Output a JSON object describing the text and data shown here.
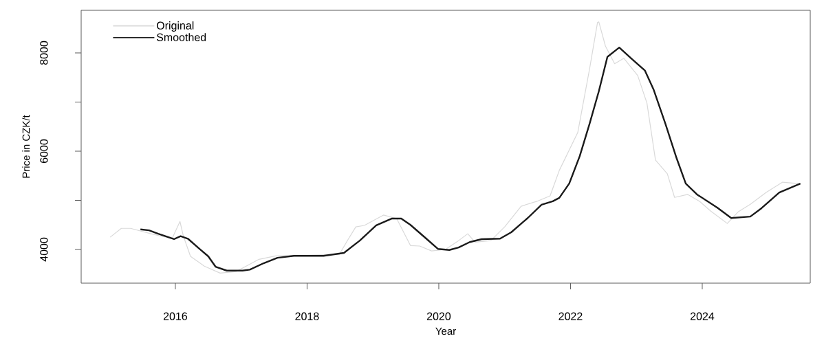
{
  "chart_data": {
    "type": "line",
    "xlabel": "Year",
    "ylabel": "Price in CZK/t",
    "xlim": [
      2014.57,
      2025.64
    ],
    "ylim": [
      3315,
      8867
    ],
    "xticks": [
      2016,
      2018,
      2020,
      2022,
      2024
    ],
    "yticks": [
      4000,
      {
        "value": 5000,
        "label": null
      },
      6000,
      {
        "value": 7000,
        "label": null
      },
      8000
    ],
    "legend": "top left",
    "series": [
      {
        "name": "Original",
        "color": "#d9d9d9",
        "x": [
          2015.01,
          2015.18,
          2015.32,
          2015.63,
          2015.95,
          2016.07,
          2016.12,
          2016.23,
          2016.44,
          2016.68,
          2016.92,
          2017.27,
          2017.52,
          2018.49,
          2018.63,
          2018.74,
          2018.87,
          2019.16,
          2019.36,
          2019.57,
          2019.71,
          2019.89,
          2020.1,
          2020.3,
          2020.44,
          2020.55,
          2020.79,
          2021.0,
          2021.25,
          2021.49,
          2021.69,
          2021.83,
          2022.11,
          2022.29,
          2022.41,
          2022.43,
          2022.53,
          2022.67,
          2022.81,
          2023.02,
          2023.16,
          2023.29,
          2023.47,
          2023.58,
          2023.78,
          2023.96,
          2024.13,
          2024.38,
          2024.55,
          2024.73,
          2024.97,
          2025.22,
          2025.46
        ],
        "values": [
          4250,
          4430,
          4430,
          4320,
          4220,
          4570,
          4280,
          3860,
          3660,
          3520,
          3550,
          3800,
          3870,
          3900,
          4220,
          4460,
          4490,
          4700,
          4630,
          4080,
          4070,
          3970,
          4000,
          4180,
          4320,
          4150,
          4180,
          4460,
          4880,
          4980,
          5090,
          5610,
          6380,
          7680,
          8620,
          8630,
          8140,
          7780,
          7890,
          7540,
          6980,
          5820,
          5540,
          5060,
          5120,
          4980,
          4780,
          4530,
          4770,
          4920,
          5160,
          5370,
          5340
        ]
      },
      {
        "name": "Smoothed",
        "color": "#1a1a1a",
        "x": [
          2015.47,
          2015.6,
          2015.74,
          2015.98,
          2016.08,
          2016.19,
          2016.37,
          2016.5,
          2016.61,
          2016.78,
          2017.02,
          2017.13,
          2017.34,
          2017.55,
          2017.8,
          2018.25,
          2018.56,
          2018.8,
          2019.05,
          2019.29,
          2019.43,
          2019.57,
          2019.81,
          2019.99,
          2020.16,
          2020.3,
          2020.47,
          2020.65,
          2020.93,
          2021.1,
          2021.35,
          2021.56,
          2021.73,
          2021.83,
          2021.98,
          2022.14,
          2022.29,
          2022.43,
          2022.56,
          2022.74,
          2022.92,
          2023.13,
          2023.26,
          2023.44,
          2023.61,
          2023.75,
          2023.92,
          2024.23,
          2024.44,
          2024.73,
          2024.9,
          2025.17,
          2025.49
        ],
        "values": [
          4410,
          4390,
          4320,
          4210,
          4270,
          4220,
          4010,
          3860,
          3650,
          3570,
          3570,
          3590,
          3720,
          3830,
          3870,
          3870,
          3930,
          4180,
          4490,
          4630,
          4630,
          4500,
          4220,
          4010,
          3990,
          4040,
          4150,
          4210,
          4220,
          4350,
          4640,
          4910,
          4980,
          5050,
          5340,
          5900,
          6560,
          7220,
          7920,
          8110,
          7890,
          7640,
          7260,
          6560,
          5860,
          5340,
          5120,
          4850,
          4640,
          4670,
          4840,
          5160,
          5340
        ]
      }
    ]
  }
}
